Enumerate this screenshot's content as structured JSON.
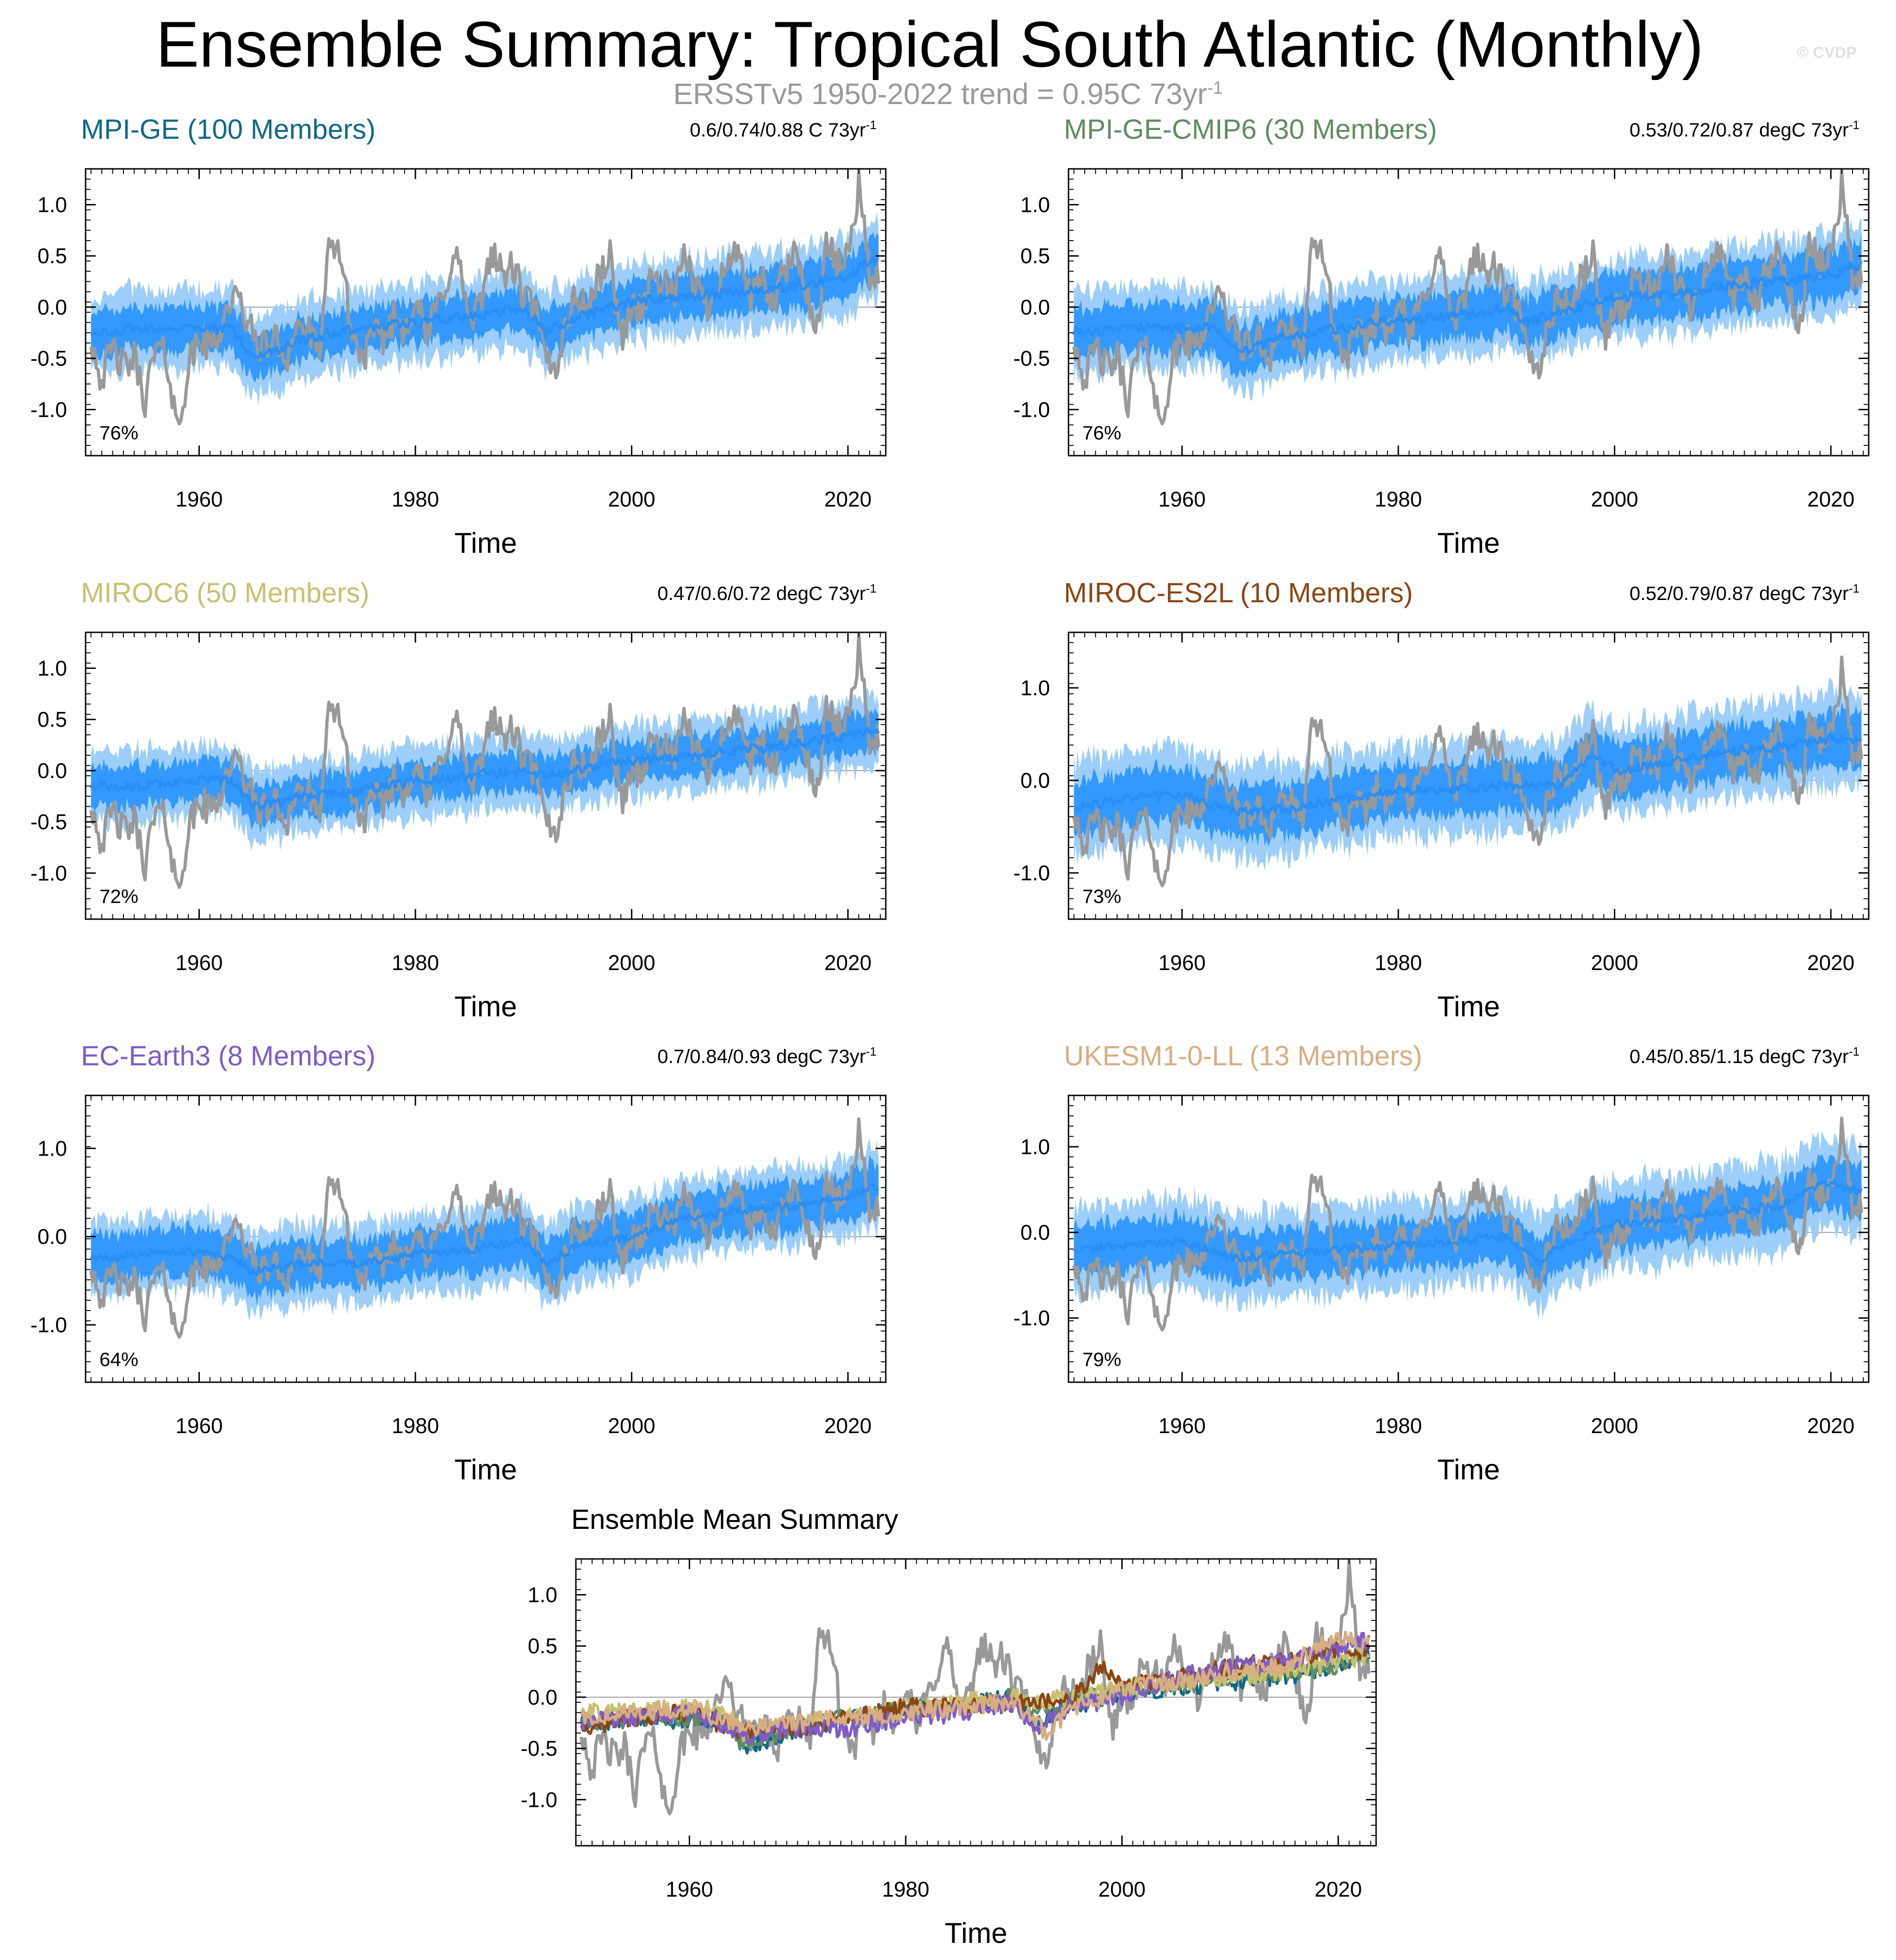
{
  "title": "Ensemble Summary: Tropical South Atlantic (Monthly)",
  "copyright": "© CVDP",
  "observation": {
    "prefix": "ERSSTv5 1950-2022 trend = 0.95C 73yr",
    "superscript": "-1",
    "color": "#999999"
  },
  "colors": {
    "obs": "#999999",
    "mean": "#2a8ff5",
    "inner_band": "#3399ff",
    "outer_band": "#9ccef9"
  },
  "chart_data": [
    {
      "type": "area",
      "title": "MPI-GE (100 Members)",
      "title_color": "#0e6987",
      "trend": "0.6/0.74/0.88 C 73yr",
      "trend_sup": "-1",
      "percent": "76%",
      "xlabel": "Time",
      "xlim": [
        1949.5,
        2023.5
      ],
      "ylim": [
        -1.45,
        1.35
      ],
      "yticks": [
        -1.0,
        -0.5,
        0.0,
        0.5,
        1.0
      ],
      "ytick_labels": [
        "-1.0",
        "-0.5",
        "0.0",
        "0.5",
        "1.0"
      ],
      "xticks": [
        1960,
        1980,
        2000,
        2020
      ],
      "xtick_labels": [
        "1960",
        "1980",
        "2000",
        "2020"
      ],
      "series": [
        {
          "name": "ensemble_mean",
          "x": [
            1950,
            1955,
            1960,
            1963,
            1965,
            1970,
            1975,
            1980,
            1985,
            1990,
            1992,
            1995,
            2000,
            2005,
            2010,
            2015,
            2020,
            2022
          ],
          "values": [
            -0.25,
            -0.2,
            -0.22,
            -0.2,
            -0.5,
            -0.3,
            -0.2,
            -0.15,
            -0.1,
            0.0,
            -0.25,
            -0.1,
            0.05,
            0.1,
            0.15,
            0.2,
            0.3,
            0.45
          ]
        },
        {
          "name": "inner_range",
          "spread": 0.22
        },
        {
          "name": "outer_range",
          "spread": 0.38
        }
      ]
    },
    {
      "type": "area",
      "title": "MPI-GE-CMIP6 (30 Members)",
      "title_color": "#5f8c60",
      "trend": "0.53/0.72/0.87 degC 73yr",
      "trend_sup": "-1",
      "percent": "76%",
      "xlabel": "Time",
      "xlim": [
        1949.5,
        2023.5
      ],
      "ylim": [
        -1.45,
        1.35
      ],
      "yticks": [
        -1.0,
        -0.5,
        0.0,
        0.5,
        1.0
      ],
      "ytick_labels": [
        "-1.0",
        "-0.5",
        "0.0",
        "0.5",
        "1.0"
      ],
      "xticks": [
        1960,
        1980,
        2000,
        2020
      ],
      "xtick_labels": [
        "1960",
        "1980",
        "2000",
        "2020"
      ],
      "series": [
        {
          "name": "ensemble_mean",
          "x": [
            1950,
            1955,
            1960,
            1963,
            1965,
            1970,
            1975,
            1980,
            1985,
            1990,
            1992,
            1995,
            2000,
            2005,
            2010,
            2015,
            2020,
            2022
          ],
          "values": [
            -0.25,
            -0.2,
            -0.2,
            -0.2,
            -0.45,
            -0.28,
            -0.2,
            -0.12,
            -0.1,
            0.0,
            -0.15,
            -0.05,
            0.1,
            0.12,
            0.2,
            0.25,
            0.3,
            0.4
          ]
        },
        {
          "name": "inner_range",
          "spread": 0.25
        },
        {
          "name": "outer_range",
          "spread": 0.4
        }
      ]
    },
    {
      "type": "area",
      "title": "MIROC6 (50 Members)",
      "title_color": "#c9bf70",
      "trend": "0.47/0.6/0.72 degC 73yr",
      "trend_sup": "-1",
      "percent": "72%",
      "xlabel": "Time",
      "xlim": [
        1949.5,
        2023.5
      ],
      "ylim": [
        -1.45,
        1.35
      ],
      "yticks": [
        -1.0,
        -0.5,
        0.0,
        0.5,
        1.0
      ],
      "ytick_labels": [
        "-1.0",
        "-0.5",
        "0.0",
        "0.5",
        "1.0"
      ],
      "xticks": [
        1960,
        1980,
        2000,
        2020
      ],
      "xtick_labels": [
        "1960",
        "1980",
        "2000",
        "2020"
      ],
      "series": [
        {
          "name": "ensemble_mean",
          "x": [
            1950,
            1955,
            1960,
            1963,
            1965,
            1970,
            1975,
            1980,
            1985,
            1990,
            1992,
            1995,
            2000,
            2005,
            2010,
            2015,
            2020,
            2022
          ],
          "values": [
            -0.15,
            -0.15,
            -0.1,
            -0.1,
            -0.35,
            -0.25,
            -0.2,
            -0.1,
            -0.05,
            0.0,
            -0.05,
            0.0,
            0.1,
            0.15,
            0.2,
            0.25,
            0.35,
            0.4
          ]
        },
        {
          "name": "inner_range",
          "spread": 0.2
        },
        {
          "name": "outer_range",
          "spread": 0.35
        }
      ]
    },
    {
      "type": "area",
      "title": "MIROC-ES2L (10 Members)",
      "title_color": "#8b4513",
      "trend": "0.52/0.79/0.87 degC 73yr",
      "trend_sup": "-1",
      "percent": "73%",
      "xlabel": "Time",
      "xlim": [
        1949.5,
        2023.5
      ],
      "ylim": [
        -1.5,
        1.6
      ],
      "yticks": [
        -1.0,
        0.0,
        1.0
      ],
      "ytick_labels": [
        "-1.0",
        "0.0",
        "1.0"
      ],
      "xticks": [
        1960,
        1980,
        2000,
        2020
      ],
      "xtick_labels": [
        "1960",
        "1980",
        "2000",
        "2020"
      ],
      "series": [
        {
          "name": "ensemble_mean",
          "x": [
            1950,
            1955,
            1960,
            1965,
            1970,
            1975,
            1980,
            1985,
            1990,
            1995,
            1998,
            2000,
            2005,
            2010,
            2015,
            2020,
            2022
          ],
          "values": [
            -0.3,
            -0.2,
            -0.15,
            -0.35,
            -0.3,
            -0.2,
            -0.1,
            -0.1,
            -0.05,
            -0.05,
            0.3,
            0.1,
            0.2,
            0.3,
            0.35,
            0.45,
            0.45
          ]
        },
        {
          "name": "inner_range",
          "spread": 0.3
        },
        {
          "name": "outer_range",
          "spread": 0.5
        }
      ]
    },
    {
      "type": "area",
      "title": "EC-Earth3 (8 Members)",
      "title_color": "#7e5bc9",
      "trend": "0.7/0.84/0.93 degC 73yr",
      "trend_sup": "-1",
      "percent": "64%",
      "xlabel": "Time",
      "xlim": [
        1949.5,
        2023.5
      ],
      "ylim": [
        -1.65,
        1.6
      ],
      "yticks": [
        -1.0,
        0.0,
        1.0
      ],
      "ytick_labels": [
        "-1.0",
        "0.0",
        "1.0"
      ],
      "xticks": [
        1960,
        1980,
        2000,
        2020
      ],
      "xtick_labels": [
        "1960",
        "1980",
        "2000",
        "2020"
      ],
      "series": [
        {
          "name": "ensemble_mean",
          "x": [
            1950,
            1955,
            1960,
            1963,
            1965,
            1970,
            1975,
            1980,
            1985,
            1990,
            1992,
            1995,
            2000,
            2005,
            2010,
            2015,
            2020,
            2022
          ],
          "values": [
            -0.25,
            -0.2,
            -0.15,
            -0.25,
            -0.4,
            -0.3,
            -0.3,
            -0.2,
            -0.15,
            -0.05,
            -0.3,
            -0.1,
            0.0,
            0.2,
            0.3,
            0.35,
            0.45,
            0.55
          ]
        },
        {
          "name": "inner_range",
          "spread": 0.28
        },
        {
          "name": "outer_range",
          "spread": 0.45
        }
      ]
    },
    {
      "type": "area",
      "title": "UKESM1-0-LL (13 Members)",
      "title_color": "#d8ad82",
      "trend": "0.45/0.85/1.15 degC 73yr",
      "trend_sup": "-1",
      "percent": "79%",
      "xlabel": "Time",
      "xlim": [
        1949.5,
        2023.5
      ],
      "ylim": [
        -1.75,
        1.6
      ],
      "yticks": [
        -1.0,
        0.0,
        1.0
      ],
      "ytick_labels": [
        "-1.0",
        "0.0",
        "1.0"
      ],
      "xticks": [
        1960,
        1980,
        2000,
        2020
      ],
      "xtick_labels": [
        "1960",
        "1980",
        "2000",
        "2020"
      ],
      "series": [
        {
          "name": "ensemble_mean",
          "x": [
            1950,
            1955,
            1960,
            1965,
            1970,
            1975,
            1980,
            1985,
            1990,
            1993,
            1995,
            2000,
            2005,
            2010,
            2015,
            2020,
            2022
          ],
          "values": [
            -0.2,
            -0.15,
            -0.1,
            -0.3,
            -0.25,
            -0.2,
            -0.15,
            -0.1,
            -0.05,
            -0.35,
            -0.15,
            0.1,
            0.15,
            0.25,
            0.3,
            0.6,
            0.5
          ]
        },
        {
          "name": "inner_range",
          "spread": 0.3
        },
        {
          "name": "outer_range",
          "spread": 0.52
        }
      ]
    },
    {
      "type": "line",
      "title": "Ensemble Mean Summary",
      "title_color": "#000000",
      "xlabel": "Time",
      "xlim": [
        1949.5,
        2023.5
      ],
      "ylim": [
        -1.45,
        1.35
      ],
      "yticks": [
        -1.0,
        -0.5,
        0.0,
        0.5,
        1.0
      ],
      "ytick_labels": [
        "-1.0",
        "-0.5",
        "0.0",
        "0.5",
        "1.0"
      ],
      "xticks": [
        1960,
        1980,
        2000,
        2020
      ],
      "xtick_labels": [
        "1960",
        "1980",
        "2000",
        "2020"
      ],
      "series": [
        {
          "name": "MPI-GE",
          "color": "#0e6987"
        },
        {
          "name": "MPI-GE-CMIP6",
          "color": "#5f8c60"
        },
        {
          "name": "MIROC6",
          "color": "#c9bf70"
        },
        {
          "name": "MIROC-ES2L",
          "color": "#8b4513"
        },
        {
          "name": "EC-Earth3",
          "color": "#7e5bc9"
        },
        {
          "name": "UKESM1-0-LL",
          "color": "#d8ad82"
        }
      ]
    }
  ],
  "observation_series": {
    "name": "ERSSTv5",
    "x": [
      1950,
      1951,
      1952,
      1953,
      1954,
      1955,
      1956,
      1957,
      1958,
      1959,
      1960,
      1961,
      1962,
      1963,
      1964,
      1965,
      1966,
      1967,
      1968,
      1969,
      1970,
      1971,
      1972,
      1973,
      1974,
      1975,
      1976,
      1977,
      1978,
      1979,
      1980,
      1981,
      1982,
      1983,
      1984,
      1985,
      1986,
      1987,
      1988,
      1989,
      1990,
      1991,
      1992,
      1993,
      1994,
      1995,
      1996,
      1997,
      1998,
      1999,
      2000,
      2001,
      2002,
      2003,
      2004,
      2005,
      2006,
      2007,
      2008,
      2009,
      2010,
      2011,
      2012,
      2013,
      2014,
      2015,
      2016,
      2017,
      2018,
      2019,
      2020,
      2021,
      2022
    ],
    "values": [
      -0.3,
      -0.7,
      -0.4,
      -0.6,
      -0.5,
      -0.9,
      -0.4,
      -0.5,
      -1.2,
      -0.6,
      -0.3,
      -0.4,
      -0.2,
      0.1,
      0.0,
      -0.3,
      -0.4,
      -0.3,
      -0.5,
      -0.2,
      -0.2,
      -0.5,
      0.5,
      0.6,
      -0.2,
      -0.5,
      -0.3,
      -0.3,
      -0.1,
      -0.2,
      0.1,
      -0.3,
      0.0,
      0.3,
      0.5,
      -0.2,
      0.0,
      0.6,
      0.3,
      0.4,
      0.1,
      0.0,
      -0.5,
      -0.6,
      -0.1,
      0.1,
      0.0,
      0.3,
      0.5,
      -0.3,
      0.0,
      0.0,
      0.3,
      0.2,
      0.1,
      0.5,
      0.2,
      0.0,
      0.3,
      0.4,
      0.6,
      0.0,
      0.3,
      0.0,
      0.3,
      0.5,
      0.3,
      -0.3,
      0.6,
      0.4,
      0.5,
      1.2,
      0.3
    ]
  }
}
